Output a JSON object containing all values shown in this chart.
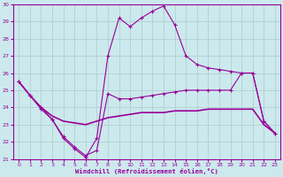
{
  "title": "Windchill (Refroidissement éolien,°C)",
  "bg_color": "#cce9ed",
  "grid_color": "#aacccc",
  "line_color": "#990099",
  "xlim": [
    -0.5,
    23.5
  ],
  "ylim": [
    21,
    30
  ],
  "xticks": [
    0,
    1,
    2,
    3,
    4,
    5,
    6,
    7,
    8,
    9,
    10,
    11,
    12,
    13,
    14,
    15,
    16,
    17,
    18,
    19,
    20,
    21,
    22,
    23
  ],
  "yticks": [
    21,
    22,
    23,
    24,
    25,
    26,
    27,
    28,
    29,
    30
  ],
  "curve_upper_x": [
    0,
    1,
    2,
    3,
    4,
    5,
    6,
    7,
    8,
    9,
    10,
    11,
    12,
    13,
    14,
    15,
    16,
    17,
    18,
    19,
    20,
    21,
    22,
    23
  ],
  "curve_upper_y": [
    25.5,
    24.7,
    24.0,
    23.3,
    22.2,
    21.6,
    21.1,
    22.2,
    27.0,
    29.2,
    28.7,
    29.2,
    29.6,
    29.9,
    28.8,
    27.0,
    26.5,
    26.3,
    26.2,
    26.1,
    26.0,
    26.0,
    23.2,
    22.5
  ],
  "curve_lower_x": [
    0,
    1,
    2,
    3,
    4,
    5,
    6,
    7,
    8,
    9,
    10,
    11,
    12,
    13,
    14,
    15,
    16,
    17,
    18,
    19,
    20,
    21,
    22,
    23
  ],
  "curve_lower_y": [
    25.5,
    24.7,
    23.9,
    23.3,
    22.3,
    21.7,
    21.2,
    21.5,
    24.8,
    24.5,
    24.5,
    24.6,
    24.7,
    24.8,
    24.9,
    25.0,
    25.0,
    25.0,
    25.0,
    25.0,
    26.0,
    26.0,
    23.2,
    22.5
  ],
  "curve_mid_x": [
    0,
    1,
    2,
    3,
    4,
    5,
    6,
    7,
    8,
    9,
    10,
    11,
    12,
    13,
    14,
    15,
    16,
    17,
    18,
    19,
    20,
    21,
    22,
    23
  ],
  "curve_mid_y": [
    25.5,
    24.7,
    24.0,
    23.5,
    23.2,
    23.1,
    23.0,
    23.2,
    23.4,
    23.5,
    23.6,
    23.7,
    23.7,
    23.7,
    23.8,
    23.8,
    23.8,
    23.9,
    23.9,
    23.9,
    23.9,
    23.9,
    23.0,
    22.5
  ]
}
